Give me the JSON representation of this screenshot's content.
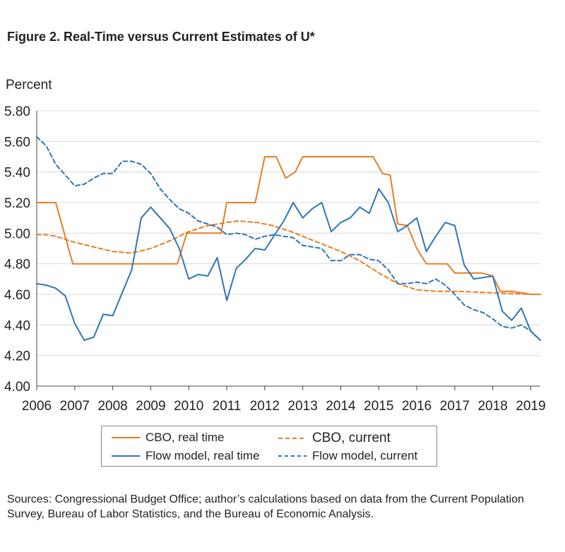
{
  "figure_title": "Figure 2. Real-Time versus Current Estimates of U*",
  "y_axis_label": "Percent",
  "source_note": "Sources: Congressional Budget Office; author’s calculations based on data from the Current Population Survey, Bureau of Labor Statistics, and the Bureau of Economic Analysis.",
  "legend": {
    "cbo_real": "CBO, real time",
    "cbo_current": "CBO, current",
    "flow_real": "Flow model, real time",
    "flow_current": "Flow model, current"
  },
  "chart_data": {
    "type": "line",
    "ylabel": "Percent",
    "xlim": [
      2006,
      2019.25
    ],
    "ylim": [
      4.0,
      5.8
    ],
    "y_ticks": [
      "4.00",
      "4.20",
      "4.40",
      "4.60",
      "4.80",
      "5.00",
      "5.20",
      "5.40",
      "5.60",
      "5.80"
    ],
    "x_ticks": [
      "2006",
      "2007",
      "2008",
      "2009",
      "2010",
      "2011",
      "2012",
      "2013",
      "2014",
      "2015",
      "2016",
      "2017",
      "2018",
      "2019"
    ],
    "grid": "horizontal",
    "legend_position": "bottom",
    "colors": {
      "orange": "#e67e22",
      "blue": "#2e75b6"
    },
    "series": [
      {
        "name": "CBO, real time",
        "color": "#e67e22",
        "dash": "solid",
        "points": [
          [
            2006,
            5.2
          ],
          [
            2006.5,
            5.2
          ],
          [
            2006.95,
            4.8
          ],
          [
            2008,
            4.8
          ],
          [
            2009,
            4.8
          ],
          [
            2009.7,
            4.8
          ],
          [
            2009.95,
            5.0
          ],
          [
            2010.4,
            5.0
          ],
          [
            2010.85,
            5.0
          ],
          [
            2011,
            5.2
          ],
          [
            2011.75,
            5.2
          ],
          [
            2012,
            5.5
          ],
          [
            2012.3,
            5.5
          ],
          [
            2012.55,
            5.36
          ],
          [
            2012.8,
            5.4
          ],
          [
            2013,
            5.5
          ],
          [
            2013.5,
            5.5
          ],
          [
            2014,
            5.5
          ],
          [
            2014.5,
            5.5
          ],
          [
            2014.85,
            5.5
          ],
          [
            2015.1,
            5.39
          ],
          [
            2015.3,
            5.38
          ],
          [
            2015.5,
            5.06
          ],
          [
            2015.75,
            5.05
          ],
          [
            2016,
            4.9
          ],
          [
            2016.25,
            4.8
          ],
          [
            2016.5,
            4.8
          ],
          [
            2016.8,
            4.8
          ],
          [
            2017,
            4.74
          ],
          [
            2017.3,
            4.74
          ],
          [
            2017.7,
            4.74
          ],
          [
            2018,
            4.72
          ],
          [
            2018.2,
            4.62
          ],
          [
            2018.5,
            4.62
          ],
          [
            2018.75,
            4.61
          ],
          [
            2019,
            4.6
          ],
          [
            2019.25,
            4.6
          ]
        ]
      },
      {
        "name": "CBO, current",
        "color": "#e67e22",
        "dash": "dashed",
        "points": [
          [
            2006,
            4.99
          ],
          [
            2006.25,
            4.99
          ],
          [
            2006.5,
            4.98
          ],
          [
            2007,
            4.94
          ],
          [
            2007.5,
            4.91
          ],
          [
            2008,
            4.88
          ],
          [
            2008.5,
            4.87
          ],
          [
            2009,
            4.9
          ],
          [
            2009.5,
            4.95
          ],
          [
            2010,
            5.01
          ],
          [
            2010.5,
            5.05
          ],
          [
            2011,
            5.07
          ],
          [
            2011.3,
            5.08
          ],
          [
            2011.8,
            5.07
          ],
          [
            2012.2,
            5.05
          ],
          [
            2012.7,
            5.01
          ],
          [
            2013,
            4.98
          ],
          [
            2013.5,
            4.93
          ],
          [
            2014,
            4.88
          ],
          [
            2014.5,
            4.82
          ],
          [
            2015,
            4.74
          ],
          [
            2015.5,
            4.67
          ],
          [
            2015.75,
            4.65
          ],
          [
            2016,
            4.63
          ],
          [
            2016.5,
            4.62
          ],
          [
            2017,
            4.62
          ],
          [
            2017.5,
            4.615
          ],
          [
            2018,
            4.61
          ],
          [
            2018.5,
            4.605
          ],
          [
            2019,
            4.6
          ],
          [
            2019.25,
            4.6
          ]
        ]
      },
      {
        "name": "Flow model, real time",
        "color": "#2e75b6",
        "dash": "solid",
        "points": [
          [
            2006,
            4.67
          ],
          [
            2006.25,
            4.66
          ],
          [
            2006.5,
            4.64
          ],
          [
            2006.75,
            4.59
          ],
          [
            2007,
            4.41
          ],
          [
            2007.25,
            4.3
          ],
          [
            2007.5,
            4.32
          ],
          [
            2007.75,
            4.47
          ],
          [
            2008,
            4.46
          ],
          [
            2008.5,
            4.76
          ],
          [
            2008.75,
            5.1
          ],
          [
            2009,
            5.17
          ],
          [
            2009.25,
            5.1
          ],
          [
            2009.5,
            5.03
          ],
          [
            2009.75,
            4.9
          ],
          [
            2010,
            4.7
          ],
          [
            2010.25,
            4.73
          ],
          [
            2010.5,
            4.72
          ],
          [
            2010.75,
            4.84
          ],
          [
            2011,
            4.56
          ],
          [
            2011.25,
            4.77
          ],
          [
            2011.5,
            4.83
          ],
          [
            2011.75,
            4.9
          ],
          [
            2012,
            4.89
          ],
          [
            2012.5,
            5.08
          ],
          [
            2012.75,
            5.2
          ],
          [
            2013,
            5.1
          ],
          [
            2013.25,
            5.16
          ],
          [
            2013.5,
            5.2
          ],
          [
            2013.75,
            5.01
          ],
          [
            2014,
            5.07
          ],
          [
            2014.25,
            5.1
          ],
          [
            2014.5,
            5.17
          ],
          [
            2014.75,
            5.13
          ],
          [
            2015,
            5.29
          ],
          [
            2015.25,
            5.2
          ],
          [
            2015.5,
            5.01
          ],
          [
            2015.75,
            5.05
          ],
          [
            2016,
            5.1
          ],
          [
            2016.25,
            4.88
          ],
          [
            2016.5,
            4.98
          ],
          [
            2016.75,
            5.07
          ],
          [
            2017,
            5.05
          ],
          [
            2017.25,
            4.79
          ],
          [
            2017.5,
            4.7
          ],
          [
            2018,
            4.72
          ],
          [
            2018.25,
            4.49
          ],
          [
            2018.5,
            4.43
          ],
          [
            2018.75,
            4.51
          ],
          [
            2019,
            4.36
          ],
          [
            2019.25,
            4.3
          ]
        ]
      },
      {
        "name": "Flow model, current",
        "color": "#2e75b6",
        "dash": "dashed",
        "points": [
          [
            2006,
            5.63
          ],
          [
            2006.25,
            5.57
          ],
          [
            2006.5,
            5.45
          ],
          [
            2006.75,
            5.38
          ],
          [
            2007,
            5.31
          ],
          [
            2007.25,
            5.32
          ],
          [
            2007.5,
            5.36
          ],
          [
            2007.75,
            5.39
          ],
          [
            2008,
            5.39
          ],
          [
            2008.25,
            5.47
          ],
          [
            2008.5,
            5.47
          ],
          [
            2008.75,
            5.45
          ],
          [
            2009,
            5.39
          ],
          [
            2009.25,
            5.29
          ],
          [
            2009.5,
            5.22
          ],
          [
            2009.75,
            5.16
          ],
          [
            2010,
            5.13
          ],
          [
            2010.25,
            5.08
          ],
          [
            2010.5,
            5.06
          ],
          [
            2010.75,
            5.04
          ],
          [
            2011,
            4.99
          ],
          [
            2011.25,
            5.0
          ],
          [
            2011.5,
            4.99
          ],
          [
            2011.75,
            4.96
          ],
          [
            2012,
            4.98
          ],
          [
            2012.25,
            4.99
          ],
          [
            2012.5,
            4.98
          ],
          [
            2012.75,
            4.97
          ],
          [
            2013,
            4.92
          ],
          [
            2013.25,
            4.91
          ],
          [
            2013.5,
            4.9
          ],
          [
            2013.75,
            4.82
          ],
          [
            2014,
            4.82
          ],
          [
            2014.25,
            4.86
          ],
          [
            2014.5,
            4.86
          ],
          [
            2014.75,
            4.83
          ],
          [
            2015,
            4.82
          ],
          [
            2015.25,
            4.76
          ],
          [
            2015.5,
            4.67
          ],
          [
            2015.75,
            4.67
          ],
          [
            2016,
            4.68
          ],
          [
            2016.25,
            4.67
          ],
          [
            2016.5,
            4.7
          ],
          [
            2016.75,
            4.66
          ],
          [
            2017,
            4.6
          ],
          [
            2017.25,
            4.53
          ],
          [
            2017.5,
            4.5
          ],
          [
            2017.75,
            4.48
          ],
          [
            2018,
            4.44
          ],
          [
            2018.25,
            4.39
          ],
          [
            2018.5,
            4.38
          ],
          [
            2018.75,
            4.4
          ],
          [
            2019,
            4.36
          ],
          [
            2019.25,
            4.3
          ]
        ]
      }
    ]
  }
}
